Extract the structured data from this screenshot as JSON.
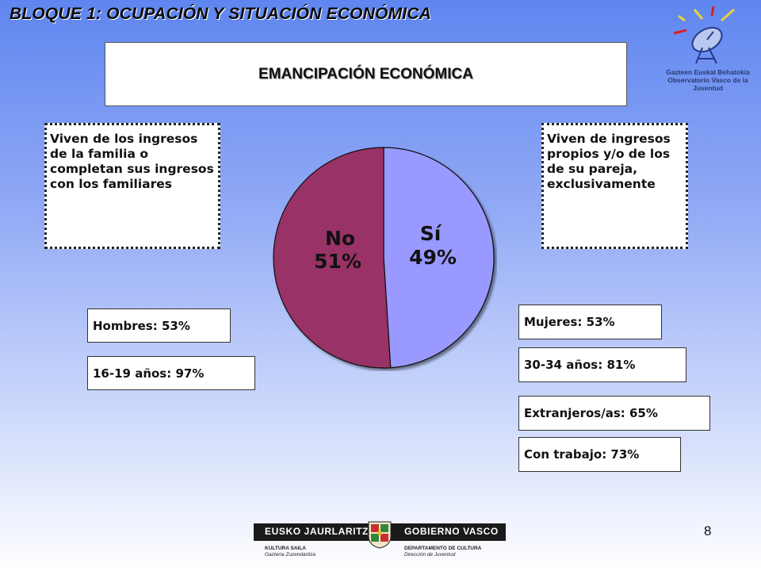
{
  "header": {
    "bloque": "BLOQUE 1: OCUPACIÓN Y SITUACIÓN ECONÓMICA"
  },
  "title": "EMANCIPACIÓN ECONÓMICA",
  "left_note": "Viven de los ingresos de la familia o completan sus ingresos con los familiares",
  "right_note": "Viven de ingresos propios y/o de los de su pareja, exclusivamente",
  "chart_data": {
    "type": "pie",
    "slices": [
      {
        "label": "Sí",
        "value": 49,
        "display": "49%",
        "color": "#9999ff"
      },
      {
        "label": "No",
        "value": 51,
        "display": "51%",
        "color": "#993366"
      }
    ]
  },
  "left_stats": [
    "Hombres: 53%",
    "16-19 años: 97%"
  ],
  "right_stats": [
    "Mujeres: 53%",
    "30-34 años: 81%",
    "Extranjeros/as: 65%",
    "Con trabajo: 73%"
  ],
  "logo": {
    "line1": "Gazteen Euskal Behatokia",
    "line2": "Observatorio Vasco de la Juventud"
  },
  "footer": {
    "left_bar": "EUSKO JAURLARITZA",
    "right_bar": "GOBIERNO VASCO",
    "left_sub1": "KULTURA SAILA",
    "left_sub2": "Gazteria Zuzendaritza",
    "right_sub1": "DEPARTAMENTO DE CULTURA",
    "right_sub2": "Dirección de Juventud",
    "page_number": "8"
  }
}
